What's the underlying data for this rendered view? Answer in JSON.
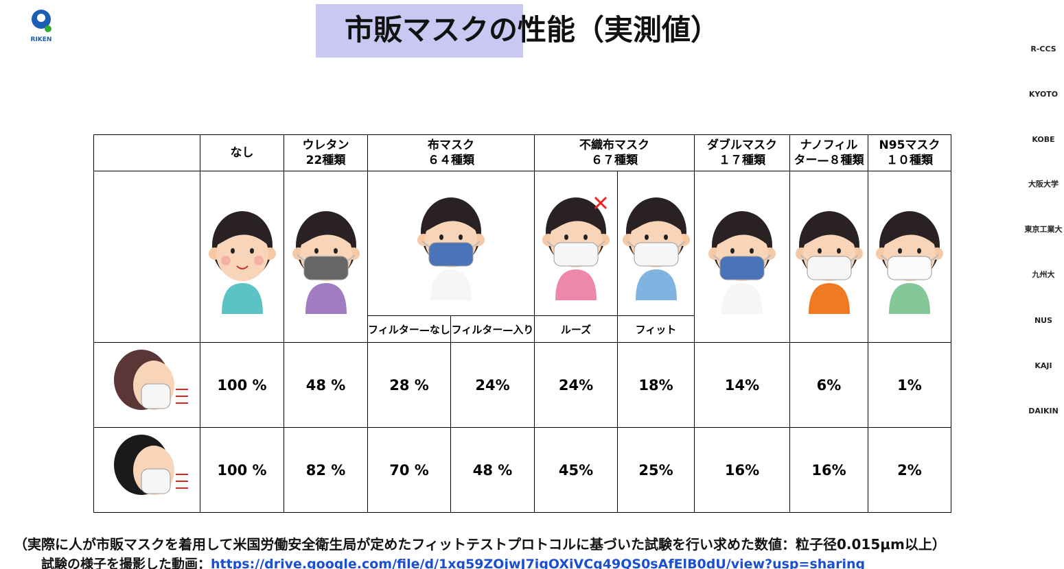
{
  "header": {
    "title": "市販マスクの性能（実測値）",
    "logo": "RIKEN"
  },
  "sidebar": {
    "logos": [
      "R-CCS",
      "KYOTO",
      "KOBE",
      "大阪大学",
      "東京工業大",
      "九州大",
      "NUS",
      "KAJI",
      "DAIKIN"
    ]
  },
  "table": {
    "columns": [
      {
        "name": "なし",
        "count": ""
      },
      {
        "name": "ウレタン",
        "count": "22種類"
      },
      {
        "name": "布マスク",
        "count": "６４種類"
      },
      {
        "name": "不織布マスク",
        "count": "６７種類"
      },
      {
        "name": "ダブルマスク",
        "count": "１７種類"
      },
      {
        "name": "ナノフィル",
        "count": "ター—８種類"
      },
      {
        "name": "N95マスク",
        "count": "１０種類"
      }
    ],
    "subheaders": [
      "フィルター—なし",
      "フィルター—入り",
      "ルーズ",
      "フィット"
    ],
    "rows": [
      [
        "100 %",
        "48 %",
        "28 %",
        "24%",
        "24%",
        "18%",
        "14%",
        "6%",
        "1%"
      ],
      [
        "100 %",
        "82 %",
        "70 %",
        "48 %",
        "45%",
        "25%",
        "16%",
        "16%",
        "2%"
      ]
    ]
  },
  "footer": {
    "note": "（実際に人が市販マスクを着用して米国労働安全衛生局が定めたフィットテストプロトコルに基づいた試験を行い求めた数値：粒子径0.015μm以上）",
    "video_label": "試験の様子を撮影した動画：",
    "video_url": "https://drive.google.com/file/d/1xg59ZOjwJ7igOXiVCq49QS0sAfElB0dU/view?usp=sharing"
  }
}
